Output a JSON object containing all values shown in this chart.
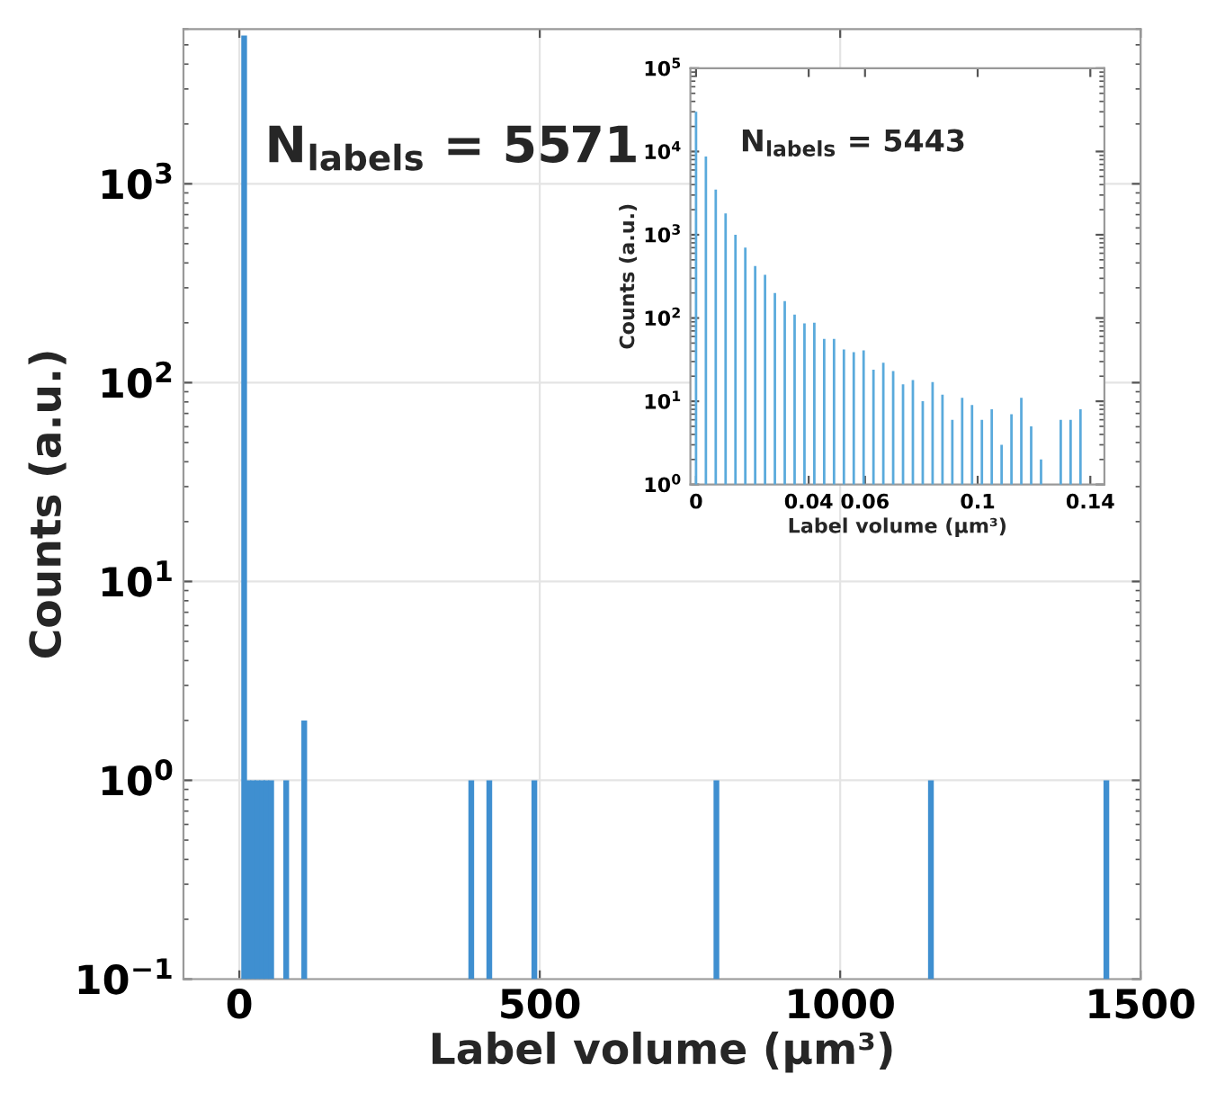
{
  "chart_data": [
    {
      "type": "bar",
      "xlabel": "Label volume (µm³)",
      "ylabel": "Counts (a.u.)",
      "log": "y",
      "grid": true,
      "x": [
        8,
        15,
        23,
        30,
        38,
        45,
        53,
        78,
        108,
        386,
        416,
        491,
        794,
        1151,
        1443
      ],
      "values": [
        5571,
        1,
        1,
        1,
        1,
        1,
        1,
        1,
        2,
        1,
        1,
        1,
        1,
        1,
        1
      ],
      "color": "#3f8fd0",
      "xlim": [
        -93,
        1500
      ],
      "xticks": [
        0,
        500,
        1000,
        1500
      ],
      "ylim": [
        0.1,
        6000
      ],
      "yticks": [
        {
          "value": 0.1,
          "label": "10$^{−1}$"
        },
        {
          "value": 1,
          "label": "10$^{0}$"
        },
        {
          "value": 10,
          "label": "10$^{1}$"
        },
        {
          "value": 100,
          "label": "10$^{2}$"
        },
        {
          "value": 1000,
          "label": "10$^{3}$"
        }
      ],
      "annotations": [
        "N$_{labels}$ = 5571"
      ]
    },
    {
      "type": "bar",
      "xlabel": "Label volume (µm³)",
      "ylabel": "Counts (a.u.)",
      "log": "y",
      "grid": false,
      "x": [
        0,
        0.0035,
        0.007,
        0.0105,
        0.014,
        0.0175,
        0.021,
        0.0245,
        0.028,
        0.0315,
        0.035,
        0.0385,
        0.042,
        0.0455,
        0.049,
        0.0525,
        0.056,
        0.0595,
        0.063,
        0.0665,
        0.07,
        0.0735,
        0.077,
        0.0805,
        0.084,
        0.0875,
        0.091,
        0.0945,
        0.098,
        0.1015,
        0.105,
        0.1085,
        0.112,
        0.1155,
        0.119,
        0.1225,
        0.126,
        0.1295,
        0.133,
        0.1365
      ],
      "values": [
        30000,
        8700,
        3500,
        1800,
        1000,
        700,
        420,
        330,
        200,
        160,
        110,
        86,
        88,
        56,
        56,
        42,
        39,
        41,
        24,
        29,
        23,
        16,
        18,
        10,
        17,
        12,
        6,
        11,
        9,
        6,
        8,
        3,
        7,
        11,
        5,
        2,
        null,
        6,
        6,
        8
      ],
      "color": "#5aaadc",
      "xlim": [
        -0.002,
        0.145
      ],
      "xticks": [
        0,
        0.04,
        0.06,
        0.1,
        0.14
      ],
      "ylim": [
        1,
        100000
      ],
      "yticks": [
        {
          "value": 1,
          "label": "10$^{0}$"
        },
        {
          "value": 10,
          "label": "10$^{1}$"
        },
        {
          "value": 100,
          "label": "10$^{2}$"
        },
        {
          "value": 1000,
          "label": "10$^{3}$"
        },
        {
          "value": 10000,
          "label": "10$^{4}$"
        },
        {
          "value": 100000,
          "label": "10$^{5}$"
        }
      ],
      "annotations": [
        "N$_{labels}$ = 5443"
      ]
    }
  ]
}
